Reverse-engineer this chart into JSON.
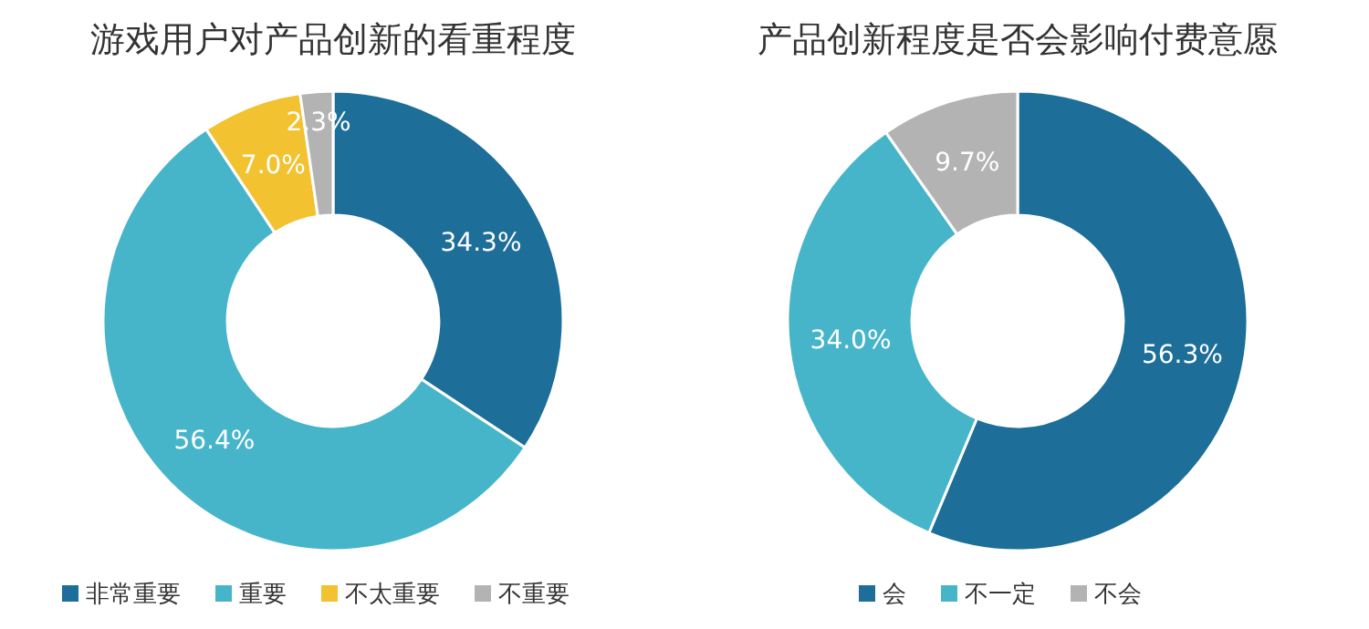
{
  "chart_data": [
    {
      "type": "donut",
      "title": "游戏用户对产品创新的看重程度",
      "categories": [
        "非常重要",
        "重要",
        "不太重要",
        "不重要"
      ],
      "values": [
        34.3,
        56.4,
        7.0,
        2.3
      ],
      "colors": [
        "#1d6e98",
        "#47b5c9",
        "#f2c230",
        "#b3b3b3"
      ],
      "value_labels": [
        "34.3%",
        "56.4%",
        "7.0%",
        "2.3%"
      ],
      "legend": "bottom"
    },
    {
      "type": "donut",
      "title": "产品创新程度是否会影响付费意愿",
      "categories": [
        "会",
        "不一定",
        "不会"
      ],
      "values": [
        56.3,
        34.0,
        9.7
      ],
      "colors": [
        "#1d6e98",
        "#47b5c9",
        "#b3b3b3"
      ],
      "value_labels": [
        "56.3%",
        "34.0%",
        "9.7%"
      ],
      "legend": "bottom"
    }
  ]
}
